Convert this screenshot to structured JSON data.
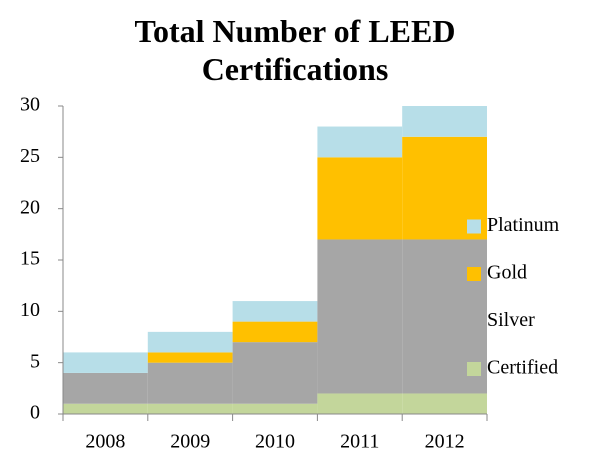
{
  "chart_data": {
    "type": "stacked_bar",
    "title": "Total Number of LEED Certifications",
    "categories": [
      "2008",
      "2009",
      "2010",
      "2011",
      "2012"
    ],
    "series": [
      {
        "name": "Certified",
        "color": "#c3d69b",
        "values": [
          1,
          1,
          1,
          2,
          2
        ]
      },
      {
        "name": "Silver",
        "color": "#a6a6a6",
        "values": [
          3,
          4,
          6,
          15,
          15
        ]
      },
      {
        "name": "Gold",
        "color": "#ffc000",
        "values": [
          0,
          1,
          2,
          8,
          10
        ]
      },
      {
        "name": "Platinum",
        "color": "#b7dee8",
        "values": [
          2,
          2,
          2,
          3,
          3
        ]
      }
    ],
    "ylim": [
      0,
      30
    ],
    "yticks": [
      0,
      5,
      10,
      15,
      20,
      25,
      30
    ],
    "grid": false,
    "legend": "right"
  }
}
